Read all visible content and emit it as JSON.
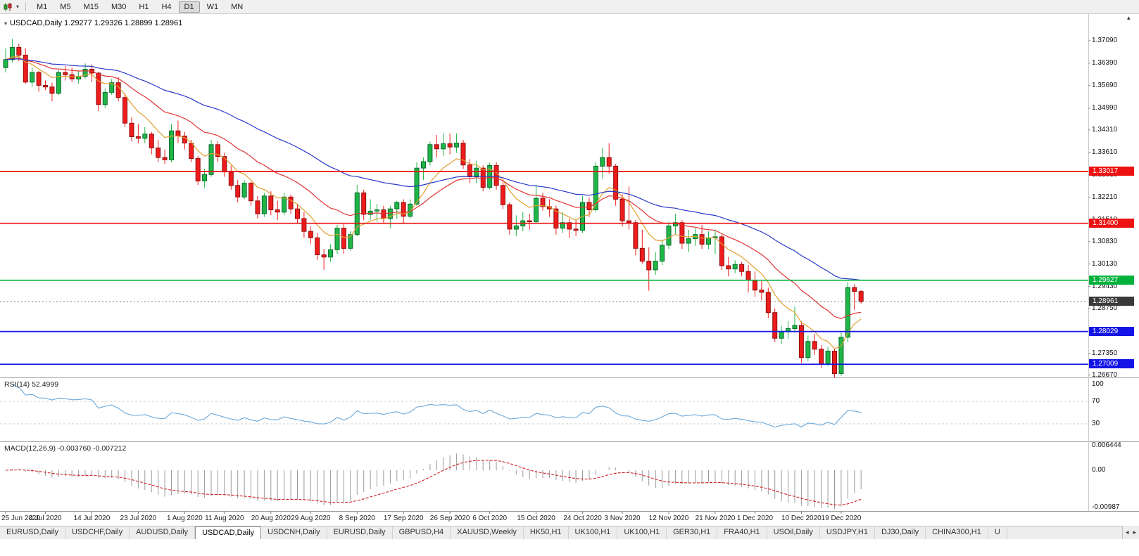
{
  "toolbar": {
    "timeframes": [
      "M1",
      "M5",
      "M15",
      "M30",
      "H1",
      "H4",
      "D1",
      "W1",
      "MN"
    ],
    "active_timeframe": "D1"
  },
  "icons": {
    "toolbar_dropdown": "▾",
    "title_marker": "▾",
    "scroll_up": "▴",
    "tab_scroll_left": "◂",
    "tab_scroll_right": "▸"
  },
  "chart": {
    "title": "USDCAD,Daily 1.29277 1.29326 1.28899 1.28961",
    "current_price": {
      "text": "1.28961",
      "value": 1.28961
    },
    "hlines": [
      {
        "text": "1.33017",
        "value": 1.33017,
        "color": "#ee1111"
      },
      {
        "text": "1.31400",
        "value": 1.314,
        "color": "#ee1111"
      },
      {
        "text": "1.29627",
        "value": 1.29627,
        "color": "#00b23c"
      },
      {
        "text": "1.28029",
        "value": 1.28029,
        "color": "#1414e6"
      },
      {
        "text": "1.27009",
        "value": 1.27009,
        "color": "#1414e6"
      }
    ],
    "rsi": {
      "label": "RSI(14) 52.4999",
      "levels": [
        {
          "text": "100",
          "value": 100
        },
        {
          "text": "70",
          "value": 70
        },
        {
          "text": "30",
          "value": 30
        }
      ],
      "dashed": [
        70,
        30
      ]
    },
    "macd": {
      "label": "MACD(12,26,9) -0.003760 -0.007212",
      "levels": [
        {
          "text": "0.006444",
          "value": 0.006444
        },
        {
          "text": "0.00",
          "value": 0
        },
        {
          "text": "-0.00987",
          "value": -0.00987
        }
      ]
    },
    "date_labels": [
      {
        "text": "25 Jun 2020",
        "i": 0
      },
      {
        "text": "4 Jul 2020",
        "i": 6
      },
      {
        "text": "14 Jul 2020",
        "i": 13
      },
      {
        "text": "23 Jul 2020",
        "i": 20
      },
      {
        "text": "1 Aug 2020",
        "i": 27
      },
      {
        "text": "11 Aug 2020",
        "i": 33
      },
      {
        "text": "20 Aug 2020",
        "i": 40
      },
      {
        "text": "29 Aug 2020",
        "i": 46
      },
      {
        "text": "8 Sep 2020",
        "i": 53
      },
      {
        "text": "17 Sep 2020",
        "i": 60
      },
      {
        "text": "26 Sep 2020",
        "i": 67
      },
      {
        "text": "6 Oct 2020",
        "i": 73
      },
      {
        "text": "15 Oct 2020",
        "i": 80
      },
      {
        "text": "24 Oct 2020",
        "i": 87
      },
      {
        "text": "3 Nov 2020",
        "i": 93
      },
      {
        "text": "12 Nov 2020",
        "i": 100
      },
      {
        "text": "21 Nov 2020",
        "i": 107
      },
      {
        "text": "1 Dec 2020",
        "i": 113
      },
      {
        "text": "10 Dec 2020",
        "i": 120
      },
      {
        "text": "19 Dec 2020",
        "i": 126
      }
    ]
  },
  "price_axis": {
    "labels": [
      "1.37090",
      "1.36390",
      "1.35690",
      "1.34990",
      "1.34310",
      "1.33610",
      "1.32910",
      "1.32210",
      "1.31510",
      "1.30830",
      "1.30130",
      "1.29430",
      "1.28750",
      "1.27350",
      "1.26670"
    ]
  },
  "colors": {
    "bull": "#1fb648",
    "bull_border": "#056a28",
    "bear": "#ee1c1c",
    "bear_border": "#8f0e0e",
    "rsi": "#69a8dc",
    "macd_hist": "#9a9a9a",
    "macd_signal": "#d02020"
  },
  "chart_data": {
    "type": "candlestick",
    "symbol": "USDCAD",
    "timeframe": "Daily",
    "title": "USDCAD,Daily",
    "ohlc_current": {
      "open": 1.29277,
      "high": 1.29326,
      "low": 1.28899,
      "close": 1.28961
    },
    "visible_price_range": [
      1.266,
      1.3792
    ],
    "support_resistance_levels": [
      1.33017,
      1.314,
      1.29627,
      1.28029,
      1.27009
    ],
    "overlays": [
      {
        "name": "fast-ma",
        "period": 8,
        "color": "#e0a030"
      },
      {
        "name": "mid-ma",
        "period": 20,
        "color": "#e03232"
      },
      {
        "name": "slow-ma",
        "period": 45,
        "color": "#2638c8"
      }
    ],
    "indicators": [
      {
        "name": "RSI",
        "period": 14,
        "current": 52.4999,
        "levels": [
          30,
          70
        ]
      },
      {
        "name": "MACD",
        "fast": 12,
        "slow": 26,
        "signal": 9,
        "current_macd": -0.00376,
        "current_signal": -0.007212
      }
    ],
    "ohlc": [
      [
        1.3625,
        1.3685,
        1.361,
        1.365
      ],
      [
        1.365,
        1.3715,
        1.364,
        1.3688
      ],
      [
        1.3688,
        1.37,
        1.3645,
        1.3664
      ],
      [
        1.3664,
        1.3685,
        1.3575,
        1.358
      ],
      [
        1.358,
        1.3625,
        1.3565,
        1.361
      ],
      [
        1.361,
        1.3615,
        1.355,
        1.357
      ],
      [
        1.357,
        1.3585,
        1.3555,
        1.3565
      ],
      [
        1.3565,
        1.3578,
        1.352,
        1.3545
      ],
      [
        1.3545,
        1.3618,
        1.354,
        1.361
      ],
      [
        1.361,
        1.363,
        1.3585,
        1.3603
      ],
      [
        1.3603,
        1.3625,
        1.358,
        1.359
      ],
      [
        1.359,
        1.3615,
        1.3575,
        1.3598
      ],
      [
        1.3598,
        1.3638,
        1.359,
        1.362
      ],
      [
        1.362,
        1.3635,
        1.358,
        1.3608
      ],
      [
        1.3608,
        1.3612,
        1.349,
        1.351
      ],
      [
        1.351,
        1.356,
        1.35,
        1.3548
      ],
      [
        1.3548,
        1.359,
        1.354,
        1.3578
      ],
      [
        1.3578,
        1.3595,
        1.352,
        1.3532
      ],
      [
        1.3532,
        1.3545,
        1.344,
        1.3452
      ],
      [
        1.3452,
        1.347,
        1.3395,
        1.341
      ],
      [
        1.341,
        1.345,
        1.339,
        1.3405
      ],
      [
        1.3405,
        1.344,
        1.339,
        1.3418
      ],
      [
        1.3418,
        1.3425,
        1.3355,
        1.3375
      ],
      [
        1.3375,
        1.34,
        1.333,
        1.3345
      ],
      [
        1.3345,
        1.337,
        1.3325,
        1.3338
      ],
      [
        1.3338,
        1.345,
        1.333,
        1.3428
      ],
      [
        1.3428,
        1.346,
        1.339,
        1.3412
      ],
      [
        1.3412,
        1.3425,
        1.337,
        1.339
      ],
      [
        1.339,
        1.34,
        1.333,
        1.3342
      ],
      [
        1.3342,
        1.335,
        1.326,
        1.3272
      ],
      [
        1.3272,
        1.331,
        1.325,
        1.3292
      ],
      [
        1.3292,
        1.34,
        1.3285,
        1.3385
      ],
      [
        1.3385,
        1.3395,
        1.333,
        1.3348
      ],
      [
        1.3348,
        1.336,
        1.3285,
        1.33
      ],
      [
        1.33,
        1.332,
        1.3245,
        1.3258
      ],
      [
        1.3258,
        1.3275,
        1.3205,
        1.3222
      ],
      [
        1.3222,
        1.3275,
        1.3215,
        1.3265
      ],
      [
        1.3265,
        1.327,
        1.3195,
        1.321
      ],
      [
        1.321,
        1.3225,
        1.3155,
        1.317
      ],
      [
        1.317,
        1.3235,
        1.316,
        1.3225
      ],
      [
        1.3225,
        1.324,
        1.3165,
        1.3182
      ],
      [
        1.3182,
        1.321,
        1.315,
        1.3175
      ],
      [
        1.3175,
        1.3235,
        1.3165,
        1.3222
      ],
      [
        1.3222,
        1.323,
        1.317,
        1.3185
      ],
      [
        1.3185,
        1.32,
        1.314,
        1.3155
      ],
      [
        1.3155,
        1.3175,
        1.3095,
        1.3115
      ],
      [
        1.3115,
        1.313,
        1.3075,
        1.3095
      ],
      [
        1.3095,
        1.311,
        1.3025,
        1.3042
      ],
      [
        1.3042,
        1.306,
        1.2995,
        1.3035
      ],
      [
        1.3035,
        1.3075,
        1.302,
        1.3058
      ],
      [
        1.3058,
        1.3135,
        1.3045,
        1.3125
      ],
      [
        1.3125,
        1.314,
        1.3045,
        1.3062
      ],
      [
        1.3062,
        1.3115,
        1.3055,
        1.3105
      ],
      [
        1.3105,
        1.326,
        1.31,
        1.3235
      ],
      [
        1.3235,
        1.3245,
        1.315,
        1.3168
      ],
      [
        1.3168,
        1.3215,
        1.315,
        1.3178
      ],
      [
        1.3178,
        1.32,
        1.3145,
        1.3182
      ],
      [
        1.3182,
        1.3195,
        1.314,
        1.3155
      ],
      [
        1.3155,
        1.3195,
        1.3125,
        1.3185
      ],
      [
        1.3185,
        1.321,
        1.3155,
        1.3205
      ],
      [
        1.3205,
        1.3215,
        1.314,
        1.3162
      ],
      [
        1.3162,
        1.3215,
        1.3155,
        1.32
      ],
      [
        1.32,
        1.333,
        1.3195,
        1.3312
      ],
      [
        1.3312,
        1.3345,
        1.3275,
        1.3332
      ],
      [
        1.3332,
        1.3395,
        1.332,
        1.3385
      ],
      [
        1.3385,
        1.3415,
        1.3345,
        1.3372
      ],
      [
        1.3372,
        1.342,
        1.335,
        1.3388
      ],
      [
        1.3388,
        1.342,
        1.3355,
        1.3378
      ],
      [
        1.3378,
        1.342,
        1.336,
        1.339
      ],
      [
        1.339,
        1.34,
        1.331,
        1.3322
      ],
      [
        1.3322,
        1.334,
        1.3265,
        1.3285
      ],
      [
        1.3285,
        1.3335,
        1.3265,
        1.3312
      ],
      [
        1.3312,
        1.332,
        1.324,
        1.3252
      ],
      [
        1.3252,
        1.333,
        1.3245,
        1.332
      ],
      [
        1.332,
        1.333,
        1.3245,
        1.3258
      ],
      [
        1.3258,
        1.327,
        1.3185,
        1.3198
      ],
      [
        1.3198,
        1.3205,
        1.3105,
        1.3122
      ],
      [
        1.3122,
        1.3165,
        1.31,
        1.3132
      ],
      [
        1.3132,
        1.3175,
        1.3115,
        1.3148
      ],
      [
        1.3148,
        1.317,
        1.312,
        1.3145
      ],
      [
        1.3145,
        1.326,
        1.314,
        1.3218
      ],
      [
        1.3218,
        1.3235,
        1.318,
        1.3192
      ],
      [
        1.3192,
        1.3215,
        1.316,
        1.3185
      ],
      [
        1.3185,
        1.3195,
        1.3105,
        1.3125
      ],
      [
        1.3125,
        1.3175,
        1.311,
        1.3142
      ],
      [
        1.3142,
        1.3155,
        1.3095,
        1.3122
      ],
      [
        1.3122,
        1.315,
        1.31,
        1.3118
      ],
      [
        1.3118,
        1.3225,
        1.311,
        1.3205
      ],
      [
        1.3205,
        1.322,
        1.316,
        1.3182
      ],
      [
        1.3182,
        1.333,
        1.3175,
        1.3318
      ],
      [
        1.3318,
        1.3375,
        1.328,
        1.3345
      ],
      [
        1.3345,
        1.339,
        1.3295,
        1.3318
      ],
      [
        1.3318,
        1.3325,
        1.3195,
        1.3215
      ],
      [
        1.3215,
        1.323,
        1.313,
        1.3148
      ],
      [
        1.3148,
        1.3255,
        1.312,
        1.3142
      ],
      [
        1.3142,
        1.315,
        1.304,
        1.3062
      ],
      [
        1.3062,
        1.312,
        1.3015,
        1.3022
      ],
      [
        1.3022,
        1.3065,
        1.293,
        1.2995
      ],
      [
        1.2995,
        1.305,
        1.298,
        1.3022
      ],
      [
        1.3022,
        1.309,
        1.301,
        1.3072
      ],
      [
        1.3072,
        1.3145,
        1.306,
        1.3132
      ],
      [
        1.3132,
        1.317,
        1.3105,
        1.3142
      ],
      [
        1.3142,
        1.315,
        1.306,
        1.3078
      ],
      [
        1.3078,
        1.312,
        1.305,
        1.3092
      ],
      [
        1.3092,
        1.3125,
        1.307,
        1.3105
      ],
      [
        1.3105,
        1.3135,
        1.306,
        1.3075
      ],
      [
        1.3075,
        1.3115,
        1.306,
        1.3095
      ],
      [
        1.3095,
        1.312,
        1.3045,
        1.3098
      ],
      [
        1.3098,
        1.3105,
        1.2995,
        1.3008
      ],
      [
        1.3008,
        1.3035,
        1.2975,
        1.2998
      ],
      [
        1.2998,
        1.3025,
        1.2985,
        1.3012
      ],
      [
        1.3012,
        1.302,
        1.2975,
        1.299
      ],
      [
        1.299,
        1.301,
        1.2925,
        1.2962
      ],
      [
        1.2962,
        1.299,
        1.291,
        1.2932
      ],
      [
        1.2932,
        1.296,
        1.29,
        1.2925
      ],
      [
        1.2925,
        1.294,
        1.2845,
        1.2862
      ],
      [
        1.2862,
        1.2875,
        1.277,
        1.2782
      ],
      [
        1.2782,
        1.282,
        1.2765,
        1.2802
      ],
      [
        1.2802,
        1.2835,
        1.278,
        1.2812
      ],
      [
        1.2812,
        1.288,
        1.28,
        1.2822
      ],
      [
        1.2822,
        1.2835,
        1.2705,
        1.2722
      ],
      [
        1.2722,
        1.279,
        1.271,
        1.2772
      ],
      [
        1.2772,
        1.2795,
        1.273,
        1.2748
      ],
      [
        1.2748,
        1.276,
        1.269,
        1.2702
      ],
      [
        1.2702,
        1.2755,
        1.2695,
        1.2742
      ],
      [
        1.2742,
        1.275,
        1.266,
        1.2672
      ],
      [
        1.2672,
        1.28,
        1.2665,
        1.2785
      ],
      [
        1.2785,
        1.2957,
        1.277,
        1.294
      ],
      [
        1.294,
        1.295,
        1.287,
        1.2928
      ],
      [
        1.29277,
        1.29326,
        1.28899,
        1.28961
      ]
    ]
  },
  "tabs": {
    "items": [
      "EURUSD,Daily",
      "USDCHF,Daily",
      "AUDUSD,Daily",
      "USDCAD,Daily",
      "USDCNH,Daily",
      "EURUSD,Daily",
      "GBPUSD,H4",
      "XAUUSD,Weekly",
      "HK50,H1",
      "UK100,H1",
      "UK100,H1",
      "GER30,H1",
      "FRA40,H1",
      "USOil,Daily",
      "USDJPY,H1",
      "DJ30,Daily",
      "CHINA300,H1",
      "U"
    ],
    "active_index": 3
  }
}
